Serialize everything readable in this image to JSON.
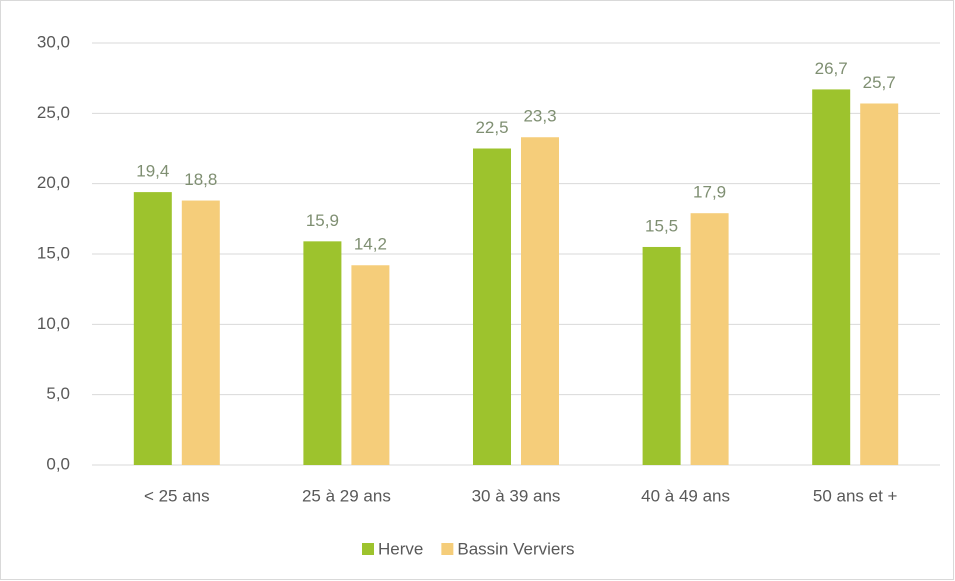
{
  "chart_data": {
    "type": "bar",
    "categories": [
      "< 25 ans",
      "25 à 29 ans",
      "30 à 39 ans",
      "40 à 49 ans",
      "50 ans et +"
    ],
    "series": [
      {
        "name": "Herve",
        "color": "#9dc32d",
        "values": [
          19.4,
          15.9,
          22.5,
          15.5,
          26.7
        ],
        "value_labels": [
          "19,4",
          "15,9",
          "22,5",
          "15,5",
          "26,7"
        ]
      },
      {
        "name": "Bassin Verviers",
        "color": "#f5cd7a",
        "values": [
          18.8,
          14.2,
          23.3,
          17.9,
          25.7
        ],
        "value_labels": [
          "18,8",
          "14,2",
          "23,3",
          "17,9",
          "25,7"
        ]
      }
    ],
    "ylim": [
      0,
      30
    ],
    "yticks": [
      {
        "value": 0,
        "label": "0,0"
      },
      {
        "value": 5,
        "label": "5,0"
      },
      {
        "value": 10,
        "label": "10,0"
      },
      {
        "value": 15,
        "label": "15,0"
      },
      {
        "value": 20,
        "label": "20,0"
      },
      {
        "value": 25,
        "label": "25,0"
      },
      {
        "value": 30,
        "label": "30,0"
      }
    ],
    "grid": true,
    "legend": "bottom"
  }
}
